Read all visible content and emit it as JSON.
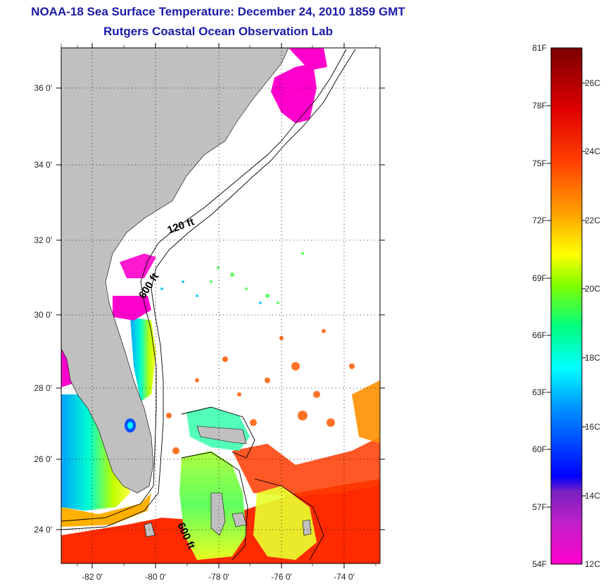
{
  "header": {
    "title": "NOAA-18 Sea Surface Temperature:  December 24, 2010 1859 GMT",
    "subtitle": "Rutgers Coastal Ocean Observation Lab"
  },
  "map": {
    "region": "US Southeast coast, Florida and Bahamas",
    "lon_range": [
      -83,
      -73
    ],
    "lat_range": [
      23,
      37
    ],
    "lat_ticks": [
      {
        "value": 36,
        "label": "36 0'"
      },
      {
        "value": 34,
        "label": "34 0'"
      },
      {
        "value": 32,
        "label": "32 0'"
      },
      {
        "value": 30,
        "label": "30 0'"
      },
      {
        "value": 28,
        "label": "28 0'"
      },
      {
        "value": 26,
        "label": "26 0'"
      },
      {
        "value": 24,
        "label": "24 0'"
      }
    ],
    "lon_ticks": [
      {
        "value": -82,
        "label": "-82 0'"
      },
      {
        "value": -80,
        "label": "-80 0'"
      },
      {
        "value": -78,
        "label": "-78 0'"
      },
      {
        "value": -76,
        "label": "-76 0'"
      },
      {
        "value": -74,
        "label": "-74 0'"
      }
    ],
    "grid": "dotted",
    "land_color": "#c0c0c0",
    "contours": [
      {
        "label": "120 ft"
      },
      {
        "label": "600 ft"
      },
      {
        "label": "600 ft"
      }
    ]
  },
  "colorbar": {
    "fahrenheit": [
      {
        "value": 81,
        "label": "81F"
      },
      {
        "value": 78,
        "label": "78F"
      },
      {
        "value": 75,
        "label": "75F"
      },
      {
        "value": 72,
        "label": "72F"
      },
      {
        "value": 69,
        "label": "69F"
      },
      {
        "value": 66,
        "label": "66F"
      },
      {
        "value": 63,
        "label": "63F"
      },
      {
        "value": 60,
        "label": "60F"
      },
      {
        "value": 57,
        "label": "57F"
      },
      {
        "value": 54,
        "label": "54F"
      }
    ],
    "celsius": [
      {
        "value": 26,
        "label": "26C"
      },
      {
        "value": 24,
        "label": "24C"
      },
      {
        "value": 22,
        "label": "22C"
      },
      {
        "value": 20,
        "label": "20C"
      },
      {
        "value": 18,
        "label": "18C"
      },
      {
        "value": 16,
        "label": "16C"
      },
      {
        "value": 14,
        "label": "14C"
      },
      {
        "value": 12,
        "label": "12C"
      }
    ],
    "colors": [
      "#ff00cc",
      "#8020c0",
      "#0000ff",
      "#0090ff",
      "#00ffff",
      "#00ff60",
      "#c0ff00",
      "#ffff00",
      "#ffa000",
      "#ff4000",
      "#e00000",
      "#7a0000"
    ]
  }
}
